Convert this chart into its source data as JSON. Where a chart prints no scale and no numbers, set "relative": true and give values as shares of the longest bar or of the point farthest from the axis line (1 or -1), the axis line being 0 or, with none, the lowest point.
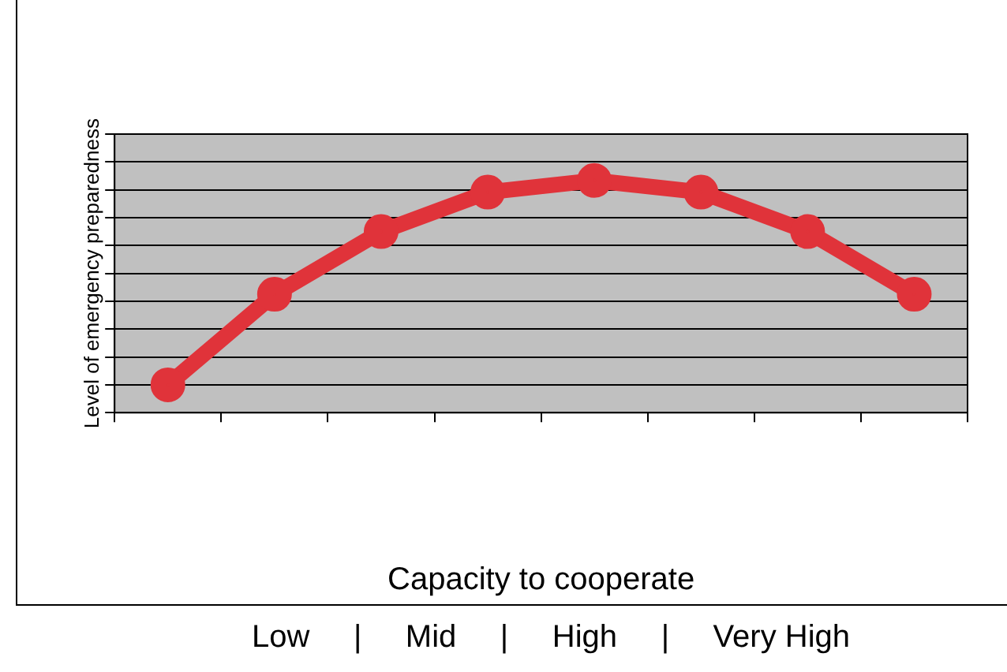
{
  "chart_data": {
    "type": "line",
    "xlabel": "Capacity to cooperate",
    "ylabel": "Level of emergency preparedness",
    "annotations": [
      "Low     |     Mid     |     High     |     Very High"
    ],
    "categories": [
      null,
      null,
      null,
      null,
      null,
      null,
      null,
      null
    ],
    "relative": true,
    "series": [
      {
        "color": "#e0333a",
        "values": [
          0.12,
          0.51,
          0.78,
          0.95,
          1,
          0.95,
          0.78,
          0.51
        ]
      }
    ],
    "grid": "y",
    "legend": false,
    "marker": "circle",
    "line_style": "solid"
  }
}
